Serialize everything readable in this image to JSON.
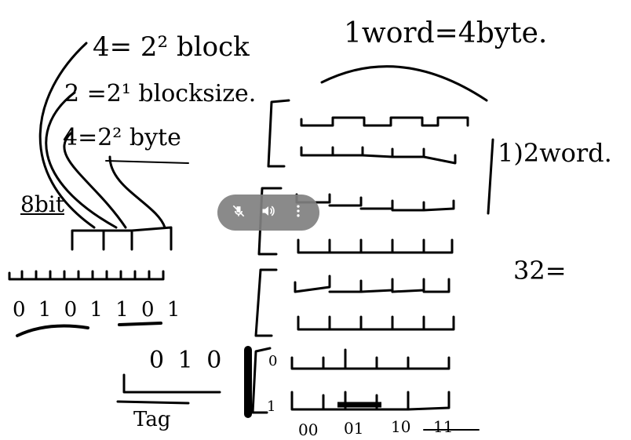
{
  "notes": {
    "line1": "4= 2² block",
    "line2": "2 =2¹ blocksize.",
    "line3": "4=2² byte",
    "bits_label": "8bit",
    "bit_values": "0 1 0 1 1 0 1",
    "tag_value": "0 1 0",
    "tag_label": "Tag",
    "word_header": "1word=4byte.",
    "two_word": "1)2word.",
    "thirty_two": "32=",
    "row_index_0": "0",
    "row_index_1": "1",
    "offsets": [
      "00",
      "01",
      "10",
      "11"
    ]
  },
  "controls": {
    "mute_icon": "muted-mic-icon",
    "volume_icon": "volume-icon",
    "more_icon": "more-vert-icon"
  }
}
